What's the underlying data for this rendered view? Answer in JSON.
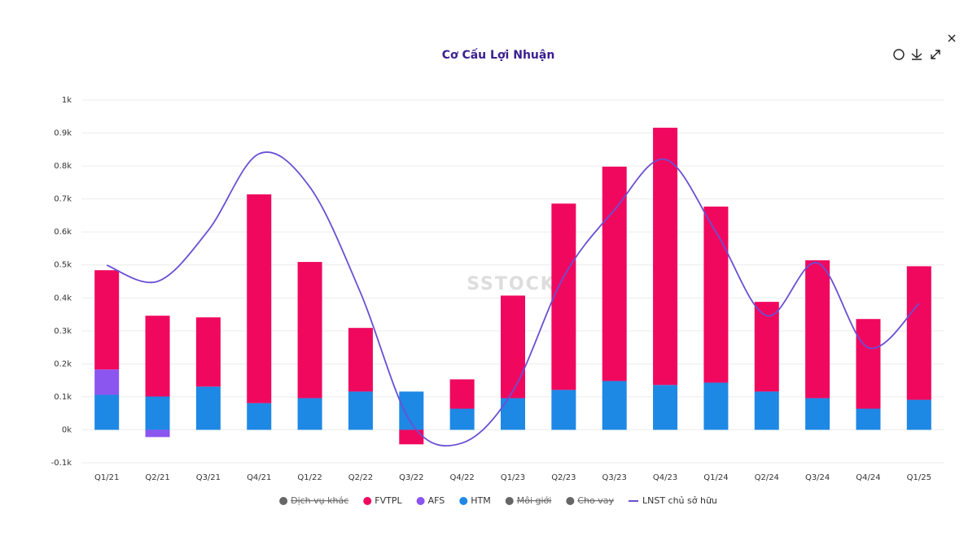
{
  "chart_data": {
    "type": "bar",
    "title": "Cơ Cấu Lợi Nhuận",
    "watermark": "SSTOCK",
    "categories": [
      "Q1/21",
      "Q2/21",
      "Q3/21",
      "Q4/21",
      "Q1/22",
      "Q2/22",
      "Q3/22",
      "Q4/22",
      "Q1/23",
      "Q2/23",
      "Q3/23",
      "Q4/23",
      "Q1/24",
      "Q2/24",
      "Q3/24",
      "Q4/24",
      "Q1/25"
    ],
    "series": [
      {
        "name": "Dịch vụ khác",
        "color": "#666666",
        "hidden": true
      },
      {
        "name": "FVTPL",
        "color": "#f0085f",
        "stacked": true,
        "values": [
          0.301,
          0.245,
          0.21,
          0.633,
          0.413,
          0.193,
          -0.044,
          0.089,
          0.311,
          0.565,
          0.65,
          0.78,
          0.534,
          0.272,
          0.418,
          0.272,
          0.405
        ]
      },
      {
        "name": "AFS",
        "color": "#8b55f0",
        "stacked": true,
        "values": [
          0.077,
          -0.022,
          0,
          0,
          0,
          0,
          0,
          0,
          0,
          0,
          0,
          0,
          0,
          0,
          0,
          0,
          0
        ]
      },
      {
        "name": "HTM",
        "color": "#1e88e5",
        "stacked": true,
        "values": [
          0.106,
          0.101,
          0.131,
          0.081,
          0.096,
          0.116,
          0.116,
          0.064,
          0.096,
          0.121,
          0.148,
          0.136,
          0.143,
          0.116,
          0.096,
          0.064,
          0.091
        ]
      },
      {
        "name": "Môi giới",
        "color": "#666666",
        "hidden": true
      },
      {
        "name": "Cho vay",
        "color": "#666666",
        "hidden": true
      },
      {
        "name": "LNST chủ sở hữu",
        "color": "#6a4fd4",
        "type": "line",
        "values": [
          0.499,
          0.45,
          0.605,
          0.837,
          0.736,
          0.415,
          0.02,
          -0.04,
          0.118,
          0.464,
          0.667,
          0.82,
          0.6,
          0.346,
          0.506,
          0.249,
          0.383
        ]
      }
    ],
    "ylim": [
      -0.1,
      1
    ],
    "yticks": [
      {
        "value": -0.1,
        "label": "-0.1k"
      },
      {
        "value": 0,
        "label": "0k"
      },
      {
        "value": 0.1,
        "label": "0.1k"
      },
      {
        "value": 0.2,
        "label": "0.2k"
      },
      {
        "value": 0.3,
        "label": "0.3k"
      },
      {
        "value": 0.4,
        "label": "0.4k"
      },
      {
        "value": 0.5,
        "label": "0.5k"
      },
      {
        "value": 0.6,
        "label": "0.6k"
      },
      {
        "value": 0.7,
        "label": "0.7k"
      },
      {
        "value": 0.8,
        "label": "0.8k"
      },
      {
        "value": 0.9,
        "label": "0.9k"
      },
      {
        "value": 1,
        "label": "1k"
      }
    ],
    "grid": true
  }
}
